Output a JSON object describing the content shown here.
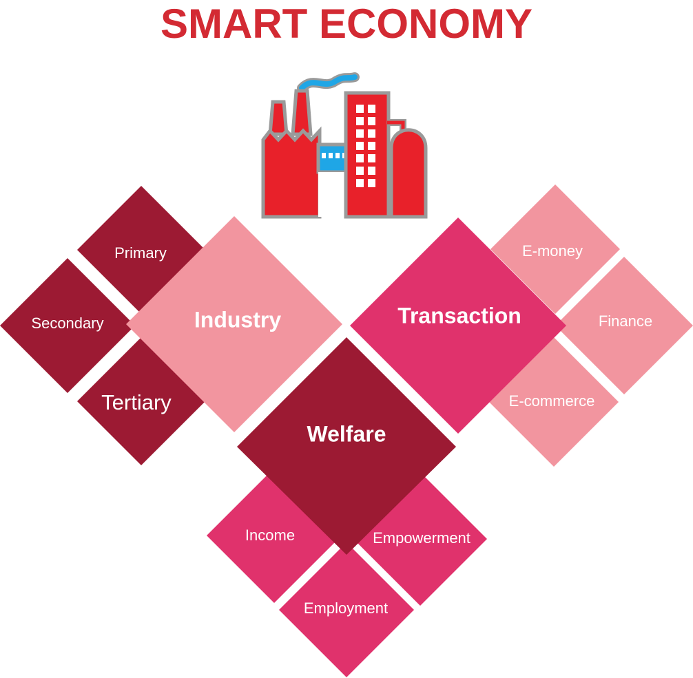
{
  "title": "SMART ECONOMY",
  "colors": {
    "title": "#d32a33",
    "dark_red": "#9c1a33",
    "light_pink": "#f2959f",
    "magenta": "#e0326c",
    "factory_red": "#e8212a",
    "factory_blue": "#1fa6e6",
    "factory_outline": "#9a9a9a"
  },
  "icons": {
    "factory": "factory-icon"
  },
  "diagram": {
    "industry": {
      "label": "Industry",
      "children": [
        "Primary",
        "Secondary",
        "Tertiary"
      ]
    },
    "transaction": {
      "label": "Transaction",
      "children": [
        "E-money",
        "Finance",
        "E-commerce"
      ]
    },
    "welfare": {
      "label": "Welfare",
      "children": [
        "Income",
        "Empowerment",
        "Employment"
      ]
    }
  }
}
